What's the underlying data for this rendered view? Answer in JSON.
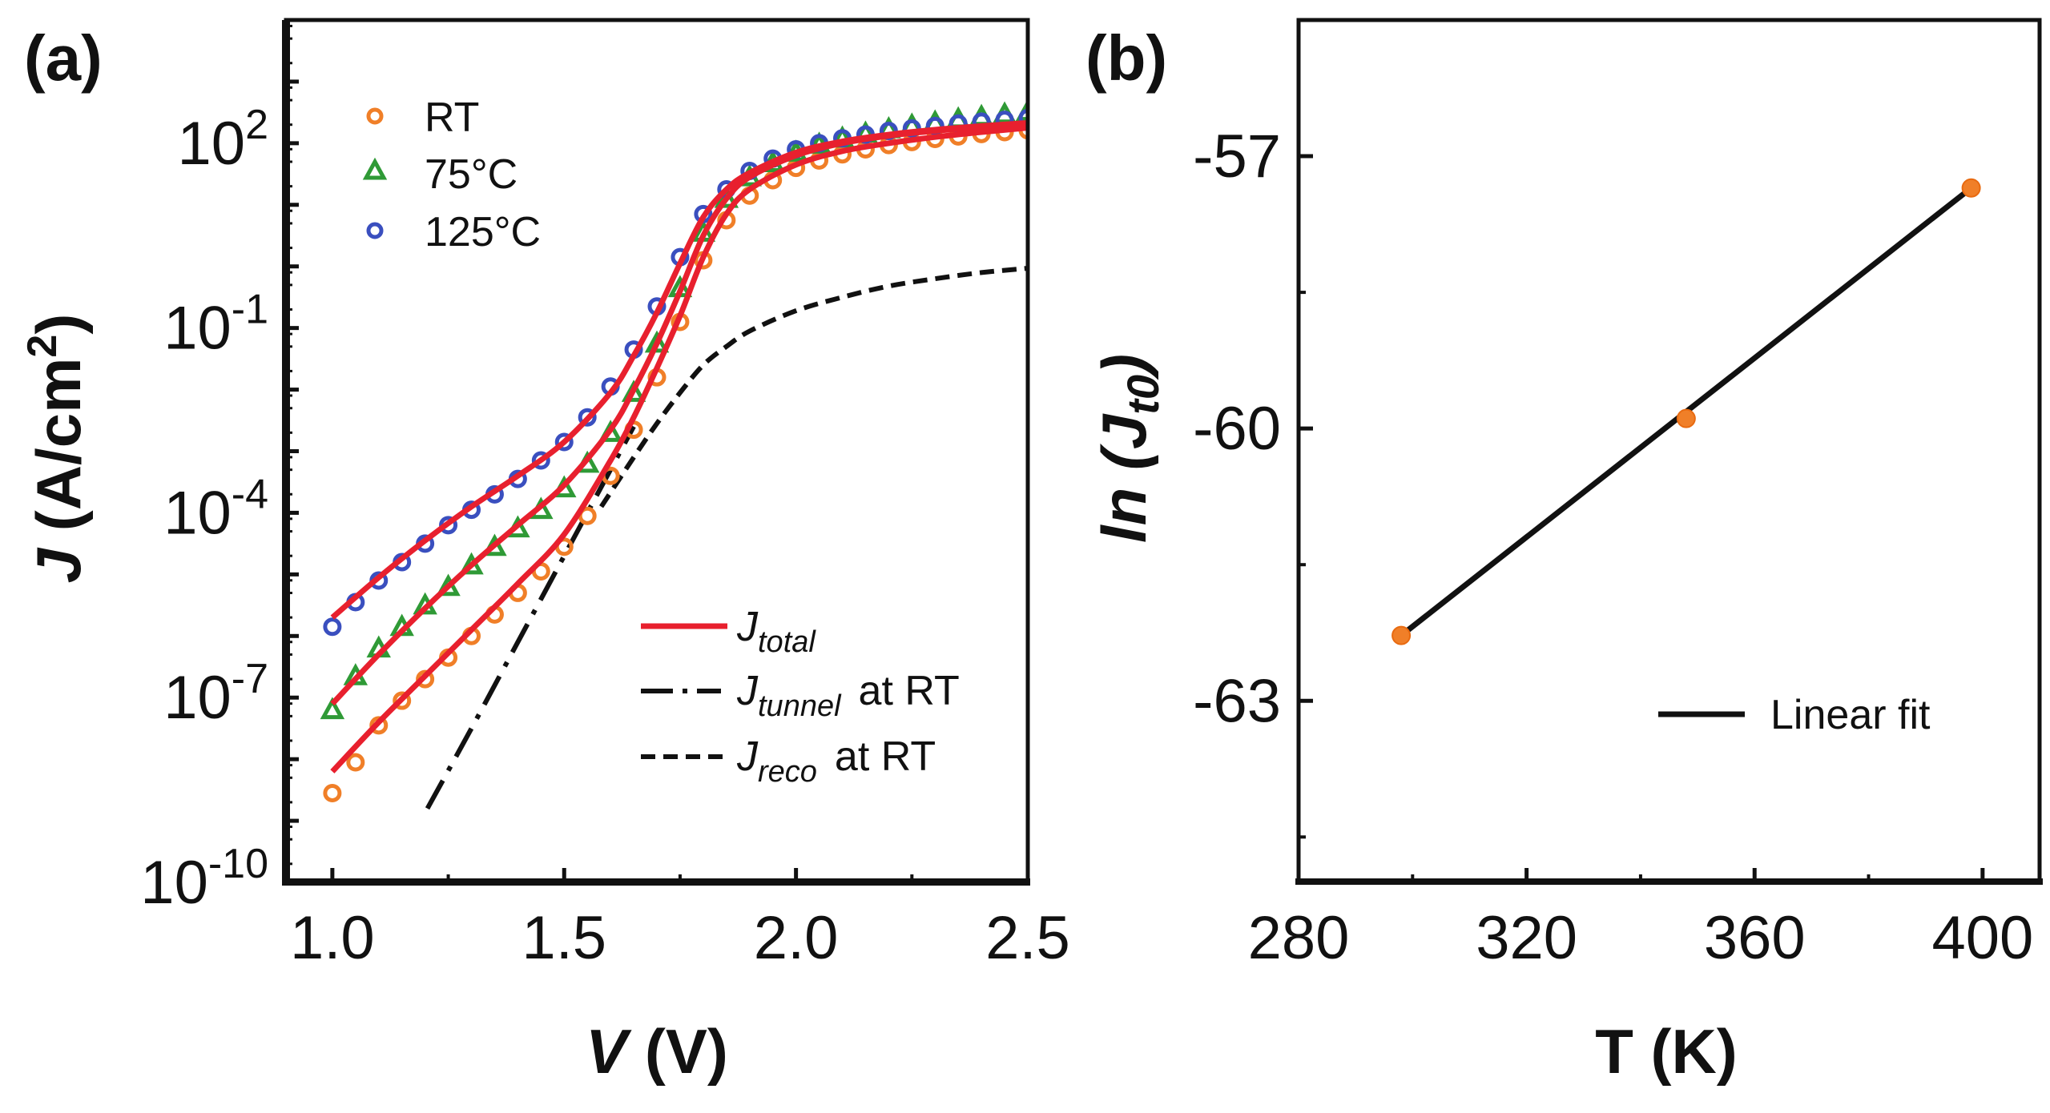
{
  "figure": {
    "panel_a_label": "(a)",
    "panel_b_label": "(b)"
  },
  "chart_data": [
    {
      "type": "line",
      "panel": "a",
      "title": "",
      "xlabel": "V (V)",
      "xlabel_italic_part": "V",
      "xlabel_rest": " (V)",
      "ylabel": "J (A/cm2)",
      "ylabel_italic_part": "J",
      "ylabel_rest": " (A/cm",
      "ylabel_sup": "2",
      "ylabel_close": ")",
      "yscale": "log",
      "xlim": [
        0.9,
        2.5
      ],
      "ylim": [
        1e-10,
        10000.0
      ],
      "xticks": [
        1.0,
        1.5,
        2.0,
        2.5
      ],
      "xtick_labels": [
        "1.0",
        "1.5",
        "2.0",
        "2.5"
      ],
      "xminor": [
        1.25,
        1.75,
        2.25
      ],
      "yticks_exp": [
        2,
        -1,
        -4,
        -7,
        -10
      ],
      "ytick_labels": [
        {
          "base": "10",
          "exp": "2"
        },
        {
          "base": "10",
          "exp": "-1"
        },
        {
          "base": "10",
          "exp": "-4"
        },
        {
          "base": "10",
          "exp": "-7"
        },
        {
          "base": "10",
          "exp": "-10"
        }
      ],
      "legend_markers": {
        "placement": "top-left",
        "items": [
          {
            "label": "RT",
            "marker": "circle",
            "color": "#f07f28"
          },
          {
            "label": "75°C",
            "marker": "triangle",
            "color": "#2f9a36"
          },
          {
            "label": "125°C",
            "marker": "circle",
            "color": "#3a4fbf"
          }
        ]
      },
      "legend_lines": {
        "placement": "bottom-right",
        "items": [
          {
            "main": "J",
            "sub": "total",
            "suffix": "",
            "style": "solid",
            "color": "#e8202e"
          },
          {
            "main": "J",
            "sub": "tunnel",
            "suffix": "at RT",
            "style": "dash-dot",
            "color": "#111111"
          },
          {
            "main": "J",
            "sub": "reco",
            "suffix": "at RT",
            "style": "dashed",
            "color": "#111111"
          }
        ]
      },
      "series": [
        {
          "name": "RT",
          "kind": "markers",
          "marker": "circle",
          "color": "#f07f28",
          "x": [
            1.0,
            1.05,
            1.1,
            1.15,
            1.2,
            1.25,
            1.3,
            1.35,
            1.4,
            1.45,
            1.5,
            1.55,
            1.6,
            1.65,
            1.7,
            1.75,
            1.8,
            1.85,
            1.9,
            1.95,
            2.0,
            2.05,
            2.1,
            2.15,
            2.2,
            2.25,
            2.3,
            2.35,
            2.4,
            2.45,
            2.5
          ],
          "log10y": [
            -8.55,
            -8.05,
            -7.45,
            -7.05,
            -6.7,
            -6.35,
            -6.0,
            -5.65,
            -5.3,
            -4.95,
            -4.55,
            -4.05,
            -3.4,
            -2.65,
            -1.8,
            -0.9,
            0.1,
            0.75,
            1.15,
            1.4,
            1.6,
            1.72,
            1.82,
            1.9,
            1.97,
            2.02,
            2.07,
            2.11,
            2.15,
            2.18,
            2.21
          ]
        },
        {
          "name": "75°C",
          "kind": "markers",
          "marker": "triangle",
          "color": "#2f9a36",
          "x": [
            1.0,
            1.05,
            1.1,
            1.15,
            1.2,
            1.25,
            1.3,
            1.35,
            1.4,
            1.45,
            1.5,
            1.55,
            1.6,
            1.65,
            1.7,
            1.75,
            1.8,
            1.85,
            1.9,
            1.95,
            2.0,
            2.05,
            2.1,
            2.15,
            2.2,
            2.25,
            2.3,
            2.35,
            2.4,
            2.45,
            2.5
          ],
          "log10y": [
            -7.2,
            -6.65,
            -6.2,
            -5.85,
            -5.5,
            -5.2,
            -4.85,
            -4.55,
            -4.25,
            -3.95,
            -3.6,
            -3.2,
            -2.7,
            -2.05,
            -1.25,
            -0.35,
            0.55,
            1.1,
            1.45,
            1.68,
            1.85,
            1.98,
            2.08,
            2.16,
            2.23,
            2.29,
            2.34,
            2.39,
            2.43,
            2.47,
            2.51
          ]
        },
        {
          "name": "125°C",
          "kind": "markers",
          "marker": "circle",
          "color": "#3a4fbf",
          "x": [
            1.0,
            1.05,
            1.1,
            1.15,
            1.2,
            1.25,
            1.3,
            1.35,
            1.4,
            1.45,
            1.5,
            1.55,
            1.6,
            1.65,
            1.7,
            1.75,
            1.8,
            1.85,
            1.9,
            1.95,
            2.0,
            2.05,
            2.1,
            2.15,
            2.2,
            2.25,
            2.3,
            2.35,
            2.4,
            2.45,
            2.5
          ],
          "log10y": [
            -5.85,
            -5.45,
            -5.1,
            -4.8,
            -4.5,
            -4.2,
            -3.95,
            -3.7,
            -3.45,
            -3.15,
            -2.85,
            -2.45,
            -1.95,
            -1.35,
            -0.65,
            0.15,
            0.85,
            1.25,
            1.55,
            1.75,
            1.9,
            2.0,
            2.08,
            2.14,
            2.2,
            2.24,
            2.28,
            2.32,
            2.35,
            2.38,
            2.41
          ]
        },
        {
          "name": "J_total fit RT",
          "kind": "line",
          "style": "solid",
          "color": "#e8202e",
          "x": [
            1.0,
            1.1,
            1.2,
            1.3,
            1.4,
            1.5,
            1.6,
            1.65,
            1.7,
            1.75,
            1.8,
            1.85,
            1.9,
            2.0,
            2.1,
            2.2,
            2.3,
            2.4,
            2.5
          ],
          "log10y": [
            -8.2,
            -7.4,
            -6.65,
            -5.9,
            -5.15,
            -4.35,
            -3.15,
            -2.45,
            -1.65,
            -0.8,
            0.15,
            0.85,
            1.25,
            1.65,
            1.87,
            2.0,
            2.1,
            2.18,
            2.25
          ]
        },
        {
          "name": "J_total fit 75°C",
          "kind": "line",
          "style": "solid",
          "color": "#e8202e",
          "x": [
            1.0,
            1.1,
            1.2,
            1.3,
            1.4,
            1.5,
            1.6,
            1.65,
            1.7,
            1.75,
            1.8,
            1.85,
            1.9,
            2.0,
            2.1,
            2.2,
            2.3,
            2.4,
            2.5
          ],
          "log10y": [
            -7.1,
            -6.3,
            -5.55,
            -4.85,
            -4.2,
            -3.55,
            -2.65,
            -2.0,
            -1.25,
            -0.4,
            0.5,
            1.1,
            1.45,
            1.8,
            2.0,
            2.12,
            2.2,
            2.26,
            2.31
          ]
        },
        {
          "name": "J_total fit 125°C",
          "kind": "line",
          "style": "solid",
          "color": "#e8202e",
          "x": [
            1.0,
            1.1,
            1.2,
            1.3,
            1.4,
            1.5,
            1.6,
            1.65,
            1.7,
            1.75,
            1.8,
            1.85,
            1.9,
            2.0,
            2.1,
            2.2,
            2.3,
            2.4,
            2.5
          ],
          "log10y": [
            -5.7,
            -5.05,
            -4.45,
            -3.9,
            -3.4,
            -2.85,
            -2.05,
            -1.45,
            -0.75,
            0.05,
            0.8,
            1.25,
            1.52,
            1.85,
            2.03,
            2.14,
            2.22,
            2.28,
            2.33
          ]
        },
        {
          "name": "J_tunnel at RT",
          "kind": "line",
          "style": "dash-dot",
          "color": "#111111",
          "x": [
            1.205,
            1.3,
            1.4,
            1.5,
            1.55,
            1.6,
            1.65
          ],
          "log10y": [
            -8.8,
            -7.5,
            -6.1,
            -4.7,
            -4.0,
            -3.3,
            -2.6
          ]
        },
        {
          "name": "J_reco at RT",
          "kind": "line",
          "style": "dashed",
          "color": "#111111",
          "x": [
            1.58,
            1.65,
            1.7,
            1.75,
            1.8,
            1.85,
            1.9,
            2.0,
            2.1,
            2.2,
            2.3,
            2.4,
            2.5
          ],
          "log10y": [
            -3.9,
            -3.1,
            -2.55,
            -2.05,
            -1.6,
            -1.3,
            -1.05,
            -0.72,
            -0.5,
            -0.32,
            -0.2,
            -0.1,
            -0.03
          ]
        }
      ]
    },
    {
      "type": "scatter",
      "panel": "b",
      "title": "",
      "xlabel": "T (K)",
      "ylabel": "ln (Jt0)",
      "ylabel_ln": "ln (",
      "ylabel_j": "J",
      "ylabel_sub": "t0",
      "ylabel_close": ")",
      "xlim": [
        280,
        410
      ],
      "ylim": [
        -65,
        -55.5
      ],
      "xticks": [
        280,
        320,
        360,
        400
      ],
      "xtick_labels": [
        "280",
        "320",
        "360",
        "400"
      ],
      "xminor": [
        300,
        340,
        380
      ],
      "yticks": [
        -57,
        -60,
        -63
      ],
      "ytick_labels": [
        "-57",
        "-60",
        "-63"
      ],
      "yminor": [
        -58.5,
        -61.5,
        -64.5
      ],
      "grid": false,
      "legend": {
        "placement": "bottom-right",
        "items": [
          {
            "label": "Linear fit",
            "style": "solid",
            "color": "#111111"
          }
        ]
      },
      "series": [
        {
          "name": "ln(Jt0)",
          "kind": "markers",
          "color": "#f07f28",
          "x": [
            298,
            348,
            398
          ],
          "y": [
            -62.28,
            -59.89,
            -57.35
          ]
        },
        {
          "name": "Linear fit",
          "kind": "line",
          "color": "#111111",
          "x": [
            298,
            398
          ],
          "y": [
            -62.28,
            -57.35
          ]
        }
      ]
    }
  ]
}
